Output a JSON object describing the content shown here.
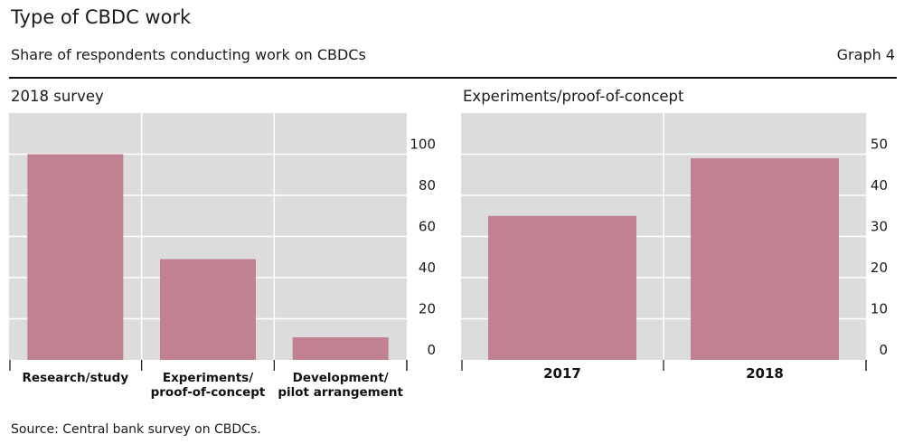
{
  "header": {
    "title": "Type of CBDC work",
    "subtitle": "Share of respondents conducting work on CBDCs",
    "graph_number": "Graph 4"
  },
  "footer": {
    "source": "Source: Central bank survey on CBDCs."
  },
  "colors": {
    "bar": "#c08290",
    "plot_background": "#dcdcdc",
    "gridline": "#ffffff"
  },
  "chart_data": [
    {
      "type": "bar",
      "title": "2018 survey",
      "categories": [
        [
          "Research/study"
        ],
        [
          "Experiments/",
          "proof-of-concept"
        ],
        [
          "Development/",
          "pilot arrangement"
        ]
      ],
      "values": [
        100,
        49,
        11
      ],
      "ylim": [
        0,
        120
      ],
      "yticks": [
        0,
        20,
        40,
        60,
        80,
        100
      ],
      "y_axis_side": "right",
      "grid": true
    },
    {
      "type": "bar",
      "title": "Experiments/proof-of-concept",
      "categories": [
        [
          "2017"
        ],
        [
          "2018"
        ]
      ],
      "values": [
        35,
        49
      ],
      "ylim": [
        0,
        60
      ],
      "yticks": [
        0,
        10,
        20,
        30,
        40,
        50
      ],
      "y_axis_side": "right",
      "grid": true
    }
  ]
}
